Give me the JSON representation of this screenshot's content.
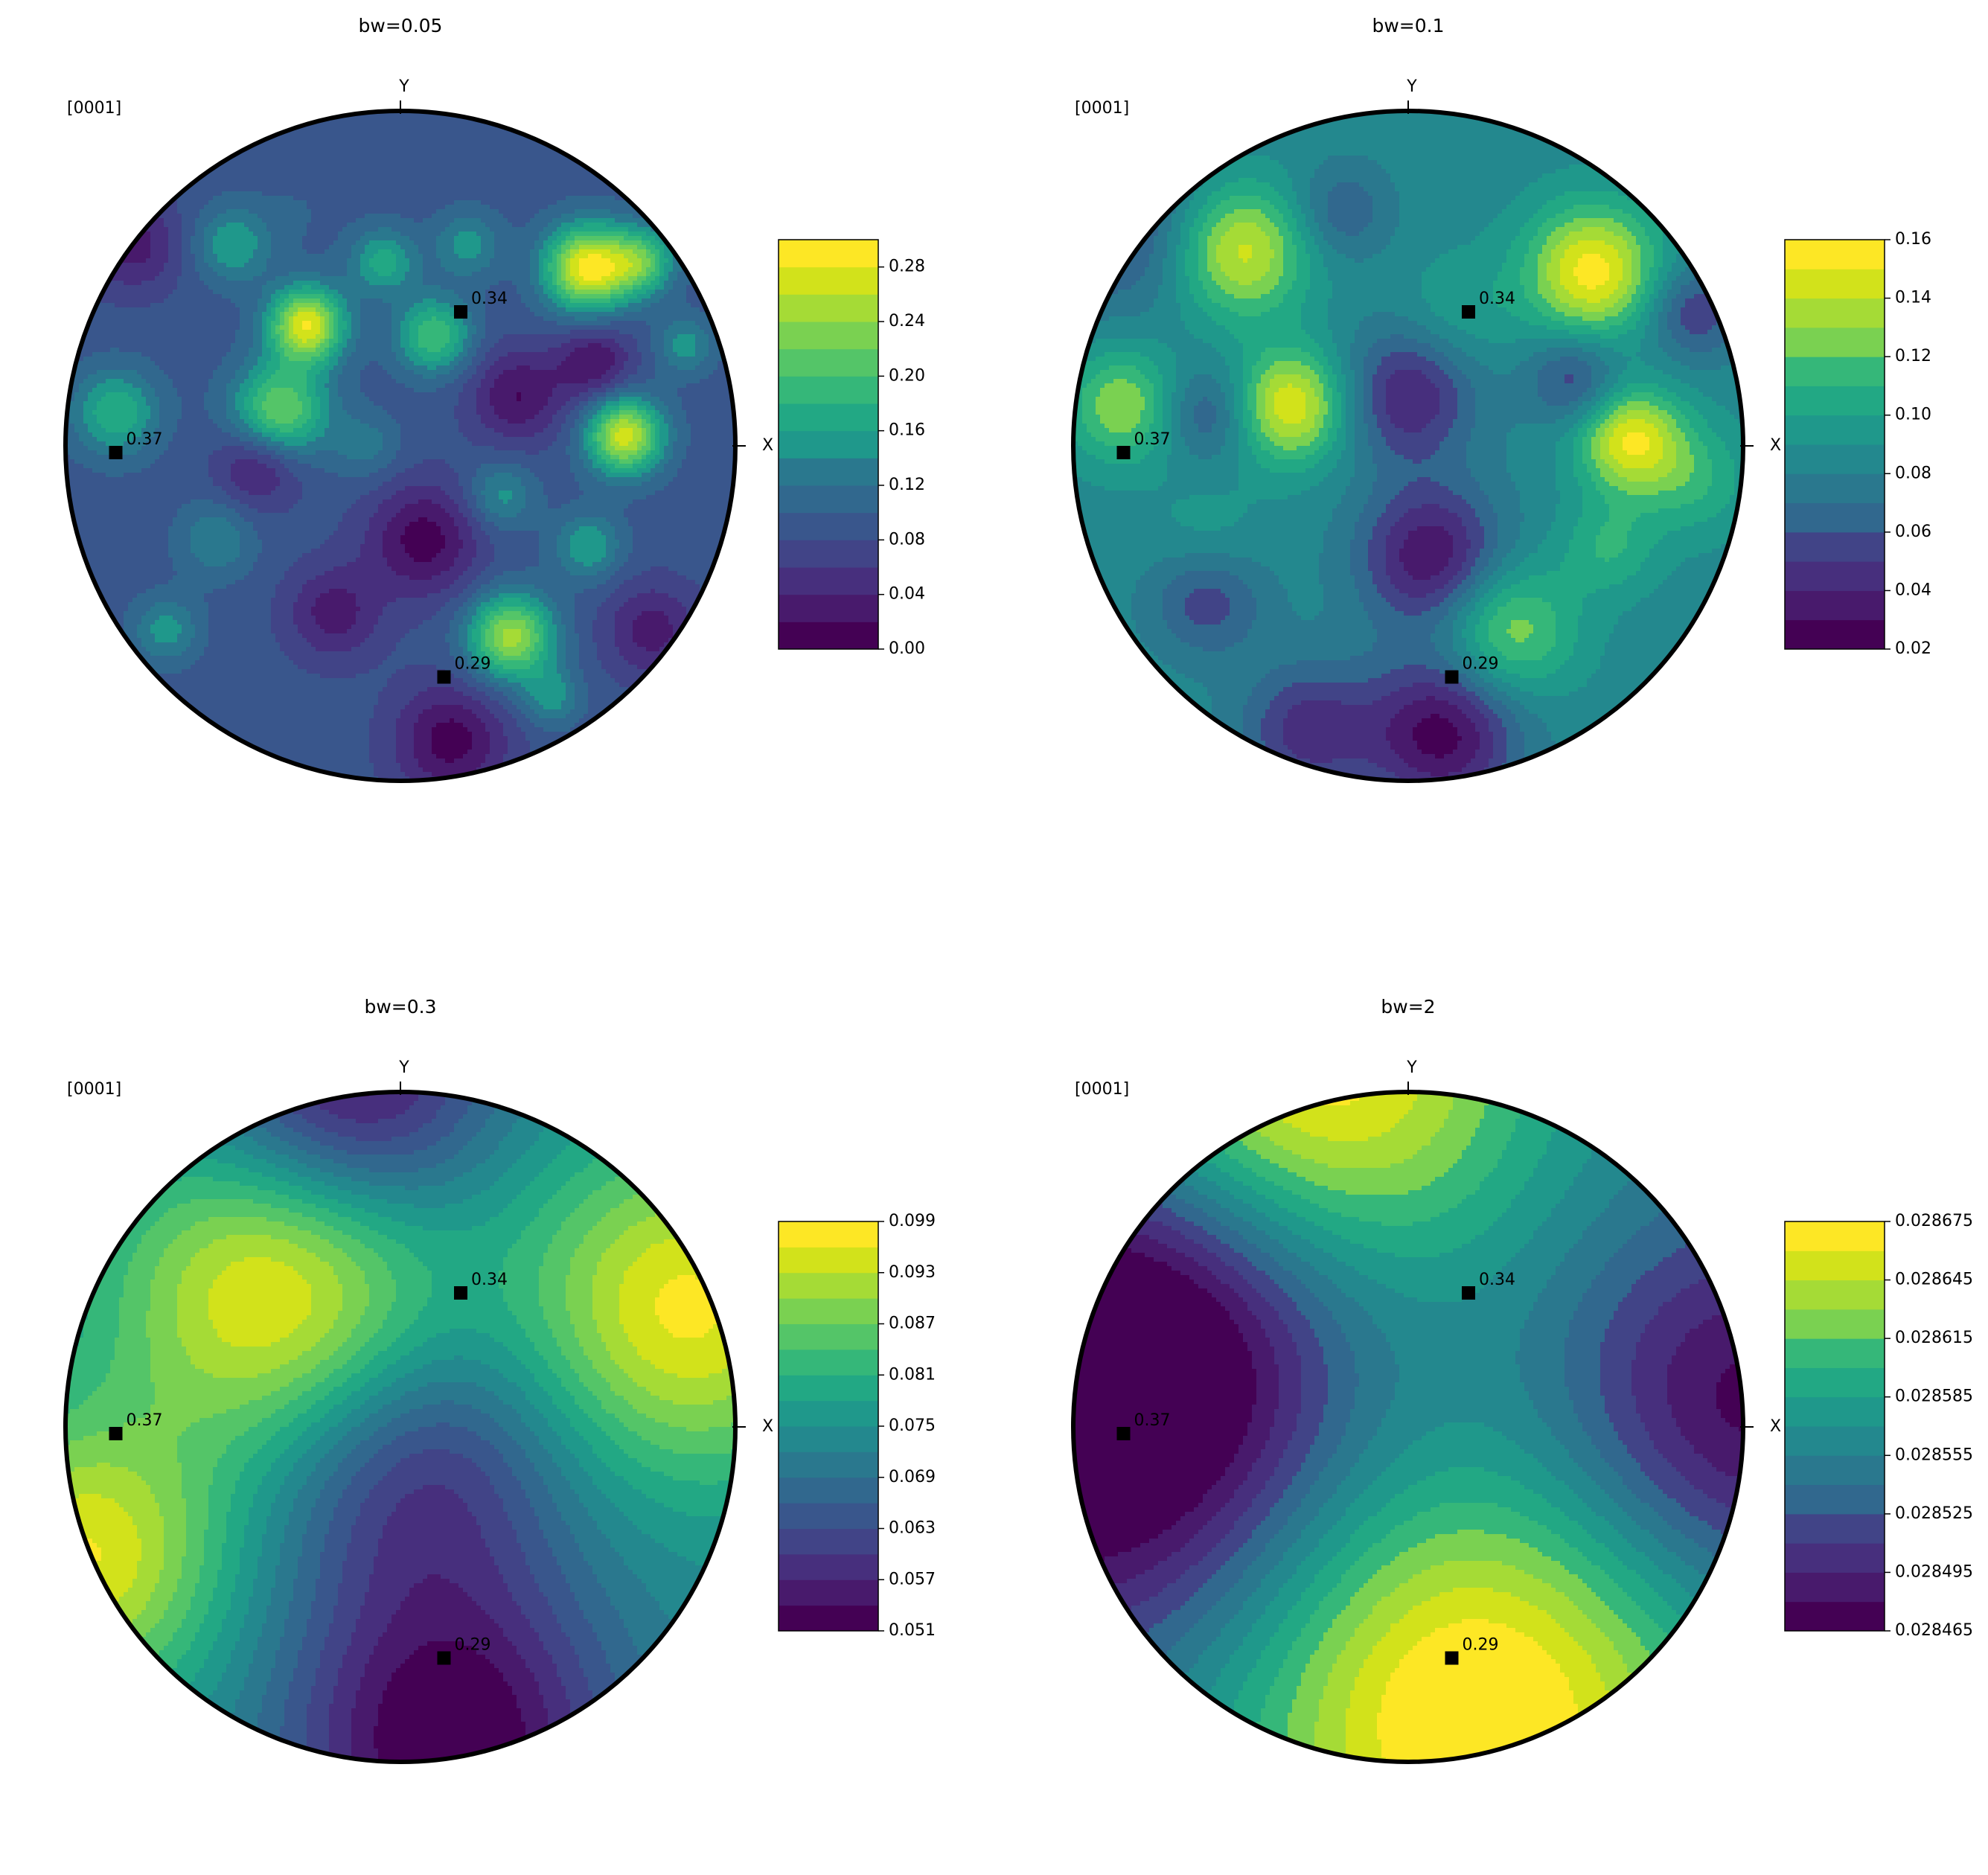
{
  "colormap": [
    "#440154",
    "#481a6c",
    "#472f7d",
    "#414487",
    "#39568c",
    "#31688e",
    "#2a788e",
    "#23888e",
    "#1f988b",
    "#22a884",
    "#35b779",
    "#54c568",
    "#7ad151",
    "#a5db36",
    "#d2e21b",
    "#fde725"
  ],
  "chart_data": [
    {
      "type": "contour",
      "title": "bw=0.05",
      "projection_label": "[0001]",
      "axis_labels": {
        "x": "X",
        "y": "Y"
      },
      "colorbar": {
        "min": 0.0,
        "max": 0.3,
        "levels": 15,
        "ticks": [
          0.0,
          0.04,
          0.08,
          0.12,
          0.16,
          0.2,
          0.24,
          0.28
        ],
        "tick_labels": [
          "0.00",
          "0.04",
          "0.08",
          "0.12",
          "0.16",
          "0.20",
          "0.24",
          "0.28"
        ]
      },
      "background_value": 0.09,
      "markers": [
        {
          "label": "0.34",
          "x": 0.18,
          "y": 0.4
        },
        {
          "label": "0.37",
          "x": -0.85,
          "y": -0.02
        },
        {
          "label": "0.29",
          "x": 0.13,
          "y": -0.69
        }
      ],
      "features": [
        {
          "x": -0.28,
          "y": 0.36,
          "value": 0.28,
          "r": 0.08
        },
        {
          "x": -0.36,
          "y": 0.1,
          "value": 0.23,
          "r": 0.1
        },
        {
          "x": 0.56,
          "y": 0.53,
          "value": 0.29,
          "r": 0.09
        },
        {
          "x": 0.67,
          "y": 0.03,
          "value": 0.27,
          "r": 0.08
        },
        {
          "x": 0.33,
          "y": -0.57,
          "value": 0.25,
          "r": 0.09
        },
        {
          "x": 0.1,
          "y": 0.33,
          "value": 0.2,
          "r": 0.08
        },
        {
          "x": -0.85,
          "y": 0.1,
          "value": 0.18,
          "r": 0.09
        },
        {
          "x": 0.72,
          "y": 0.55,
          "value": 0.2,
          "r": 0.07
        },
        {
          "x": -0.5,
          "y": 0.6,
          "value": 0.16,
          "r": 0.08
        },
        {
          "x": -0.05,
          "y": 0.55,
          "value": 0.17,
          "r": 0.07
        },
        {
          "x": 0.56,
          "y": -0.3,
          "value": 0.16,
          "r": 0.07
        },
        {
          "x": -0.3,
          "y": 0.7,
          "value": 0.1,
          "r": 0.09
        },
        {
          "x": 0.2,
          "y": 0.6,
          "value": 0.15,
          "r": 0.07
        },
        {
          "x": -0.55,
          "y": -0.28,
          "value": 0.14,
          "r": 0.08
        },
        {
          "x": -0.42,
          "y": -0.05,
          "value": 0.02,
          "r": 0.09
        },
        {
          "x": 0.07,
          "y": -0.28,
          "value": 0.01,
          "r": 0.12
        },
        {
          "x": 0.35,
          "y": 0.15,
          "value": 0.02,
          "r": 0.1
        },
        {
          "x": 0.15,
          "y": -0.88,
          "value": 0.01,
          "r": 0.12
        },
        {
          "x": -0.8,
          "y": 0.6,
          "value": 0.03,
          "r": 0.1
        },
        {
          "x": 0.58,
          "y": 0.25,
          "value": 0.02,
          "r": 0.08
        },
        {
          "x": -0.2,
          "y": -0.5,
          "value": 0.03,
          "r": 0.1
        },
        {
          "x": 0.75,
          "y": -0.55,
          "value": 0.03,
          "r": 0.1
        },
        {
          "x": 0.3,
          "y": -0.15,
          "value": 0.15,
          "r": 0.07
        },
        {
          "x": -0.1,
          "y": 0.0,
          "value": 0.13,
          "r": 0.07
        },
        {
          "x": 0.85,
          "y": 0.3,
          "value": 0.15,
          "r": 0.06
        },
        {
          "x": -0.7,
          "y": -0.55,
          "value": 0.15,
          "r": 0.07
        },
        {
          "x": 0.45,
          "y": -0.75,
          "value": 0.15,
          "r": 0.06
        }
      ]
    },
    {
      "type": "contour",
      "title": "bw=0.1",
      "projection_label": "[0001]",
      "axis_labels": {
        "x": "X",
        "y": "Y"
      },
      "colorbar": {
        "min": 0.02,
        "max": 0.16,
        "levels": 14,
        "ticks": [
          0.02,
          0.04,
          0.06,
          0.08,
          0.1,
          0.12,
          0.14,
          0.16
        ],
        "tick_labels": [
          "0.02",
          "0.04",
          "0.06",
          "0.08",
          "0.10",
          "0.12",
          "0.14",
          "0.16"
        ]
      },
      "background_value": 0.085,
      "markers": [
        {
          "label": "0.34",
          "x": 0.18,
          "y": 0.4
        },
        {
          "label": "0.37",
          "x": -0.85,
          "y": -0.02
        },
        {
          "label": "0.29",
          "x": 0.13,
          "y": -0.69
        }
      ],
      "features": [
        {
          "x": 0.55,
          "y": 0.52,
          "value": 0.155,
          "r": 0.14
        },
        {
          "x": -0.5,
          "y": 0.58,
          "value": 0.145,
          "r": 0.14
        },
        {
          "x": -0.35,
          "y": 0.12,
          "value": 0.15,
          "r": 0.12
        },
        {
          "x": 0.66,
          "y": 0.02,
          "value": 0.15,
          "r": 0.11
        },
        {
          "x": -0.85,
          "y": 0.12,
          "value": 0.13,
          "r": 0.12
        },
        {
          "x": 0.3,
          "y": -0.55,
          "value": 0.13,
          "r": 0.14
        },
        {
          "x": 0.07,
          "y": -0.33,
          "value": 0.03,
          "r": 0.15
        },
        {
          "x": 0.1,
          "y": -0.86,
          "value": 0.025,
          "r": 0.16
        },
        {
          "x": 0.0,
          "y": 0.15,
          "value": 0.04,
          "r": 0.14
        },
        {
          "x": -0.6,
          "y": 0.1,
          "value": 0.055,
          "r": 0.1
        },
        {
          "x": -0.2,
          "y": 0.7,
          "value": 0.06,
          "r": 0.1
        },
        {
          "x": 0.5,
          "y": 0.2,
          "value": 0.05,
          "r": 0.1
        },
        {
          "x": -0.3,
          "y": -0.85,
          "value": 0.045,
          "r": 0.14
        },
        {
          "x": -0.6,
          "y": -0.45,
          "value": 0.05,
          "r": 0.12
        },
        {
          "x": -0.85,
          "y": 0.65,
          "value": 0.055,
          "r": 0.18
        },
        {
          "x": 0.85,
          "y": 0.4,
          "value": 0.05,
          "r": 0.1
        },
        {
          "x": 0.85,
          "y": -0.1,
          "value": 0.11,
          "r": 0.12
        },
        {
          "x": 0.6,
          "y": -0.3,
          "value": 0.11,
          "r": 0.1
        },
        {
          "x": -0.6,
          "y": -0.3,
          "value": 0.1,
          "r": 0.12
        },
        {
          "x": 0.15,
          "y": 0.4,
          "value": 0.1,
          "r": 0.12
        }
      ]
    },
    {
      "type": "contour",
      "title": "bw=0.3",
      "projection_label": "[0001]",
      "axis_labels": {
        "x": "X",
        "y": "Y"
      },
      "colorbar": {
        "min": 0.051,
        "max": 0.099,
        "levels": 16,
        "ticks": [
          0.051,
          0.057,
          0.063,
          0.069,
          0.075,
          0.081,
          0.087,
          0.093,
          0.099
        ],
        "tick_labels": [
          "0.051",
          "0.057",
          "0.063",
          "0.069",
          "0.075",
          "0.081",
          "0.087",
          "0.093",
          "0.099"
        ]
      },
      "background_value": 0.074,
      "markers": [
        {
          "label": "0.34",
          "x": 0.18,
          "y": 0.4
        },
        {
          "label": "0.37",
          "x": -0.85,
          "y": -0.02
        },
        {
          "label": "0.29",
          "x": 0.13,
          "y": -0.69
        }
      ],
      "features": [
        {
          "x": -0.35,
          "y": 0.4,
          "value": 0.099,
          "r": 0.35
        },
        {
          "x": 0.85,
          "y": 0.35,
          "value": 0.097,
          "r": 0.35
        },
        {
          "x": -0.95,
          "y": -0.4,
          "value": 0.096,
          "r": 0.3
        },
        {
          "x": 0.05,
          "y": -0.12,
          "value": 0.058,
          "r": 0.32
        },
        {
          "x": 0.15,
          "y": -0.95,
          "value": 0.05,
          "r": 0.35
        },
        {
          "x": -0.15,
          "y": 1.0,
          "value": 0.052,
          "r": 0.3
        }
      ]
    },
    {
      "type": "contour",
      "title": "bw=2",
      "projection_label": "[0001]",
      "axis_labels": {
        "x": "X",
        "y": "Y"
      },
      "colorbar": {
        "min": 0.028465,
        "max": 0.028675,
        "levels": 14,
        "ticks": [
          0.028465,
          0.028495,
          0.028525,
          0.028555,
          0.028585,
          0.028615,
          0.028645,
          0.028675
        ],
        "tick_labels": [
          "0.028465",
          "0.028495",
          "0.028525",
          "0.028555",
          "0.028585",
          "0.028615",
          "0.028645",
          "0.028675"
        ]
      },
      "background_value": 0.02856,
      "markers": [
        {
          "label": "0.34",
          "x": 0.18,
          "y": 0.4
        },
        {
          "label": "0.37",
          "x": -0.85,
          "y": -0.02
        },
        {
          "label": "0.29",
          "x": 0.13,
          "y": -0.69
        }
      ],
      "features": [
        {
          "x": 0.2,
          "y": -0.85,
          "value": 0.028685,
          "r": 0.5
        },
        {
          "x": -0.3,
          "y": 1.05,
          "value": 0.02868,
          "r": 0.45
        },
        {
          "x": -0.95,
          "y": 0.0,
          "value": 0.02845,
          "r": 0.5
        },
        {
          "x": 1.0,
          "y": 0.05,
          "value": 0.02847,
          "r": 0.4
        },
        {
          "x": -0.7,
          "y": 0.4,
          "value": 0.028505,
          "r": 0.4
        }
      ]
    }
  ]
}
